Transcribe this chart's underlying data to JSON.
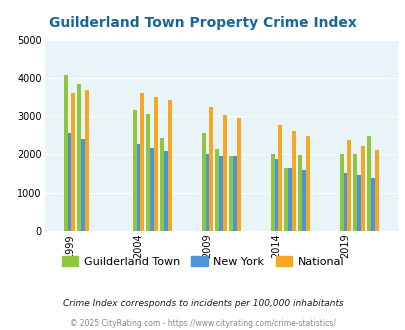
{
  "title": "Guilderland Town Property Crime Index",
  "title_color": "#1a6699",
  "subtitle": "Crime Index corresponds to incidents per 100,000 inhabitants",
  "footer": "© 2025 CityRating.com - https://www.cityrating.com/crime-statistics/",
  "years": [
    1999,
    2000,
    2004,
    2005,
    2006,
    2009,
    2010,
    2011,
    2014,
    2015,
    2016,
    2019,
    2020,
    2021
  ],
  "guilderland": [
    4080,
    3840,
    3170,
    3050,
    2420,
    2550,
    2150,
    1970,
    2020,
    1650,
    1990,
    2020,
    2000,
    2490
  ],
  "new_york": [
    2550,
    2400,
    2270,
    2180,
    2100,
    2020,
    1970,
    1950,
    1870,
    1650,
    1600,
    1520,
    1470,
    1390
  ],
  "national": [
    3600,
    3680,
    3610,
    3510,
    3410,
    3250,
    3040,
    2960,
    2770,
    2620,
    2490,
    2380,
    2220,
    2110
  ],
  "guilderland_color": "#8dc63f",
  "new_york_color": "#4d93d9",
  "national_color": "#f5a623",
  "bg_color": "#e8f4f8",
  "ylim": [
    0,
    5000
  ],
  "yticks": [
    0,
    1000,
    2000,
    3000,
    4000,
    5000
  ],
  "xtick_labels": [
    "1999",
    "2004",
    "2009",
    "2014",
    "2019"
  ],
  "xtick_positions": [
    1999,
    2004,
    2009,
    2014,
    2019
  ],
  "legend_labels": [
    "Guilderland Town",
    "New York",
    "National"
  ],
  "subtitle_color": "#1a1a2e",
  "footer_color": "#888888"
}
